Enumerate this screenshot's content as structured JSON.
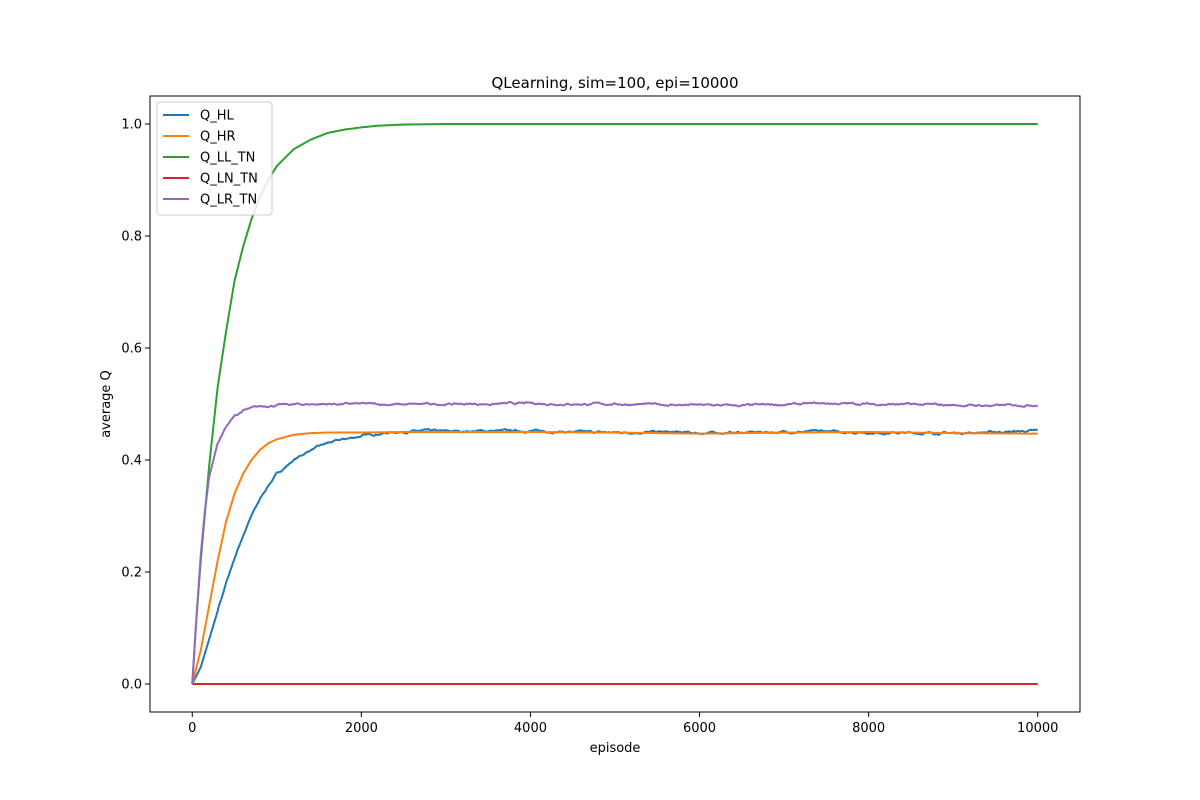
{
  "chart_data": {
    "type": "line",
    "title": "QLearning, sim=100, epi=10000",
    "xlabel": "episode",
    "ylabel": "average Q",
    "xlim": [
      -500,
      10500
    ],
    "ylim": [
      -0.05,
      1.05
    ],
    "xticks": [
      0,
      2000,
      4000,
      6000,
      8000,
      10000
    ],
    "yticks": [
      0.0,
      0.2,
      0.4,
      0.6,
      0.8,
      1.0
    ],
    "xtick_labels": [
      "0",
      "2000",
      "4000",
      "6000",
      "8000",
      "10000"
    ],
    "ytick_labels": [
      "0.0",
      "0.2",
      "0.4",
      "0.6",
      "0.8",
      "1.0"
    ],
    "grid": false,
    "legend_position": "top-left",
    "series": [
      {
        "name": "Q_HL",
        "color": "#1f77b4",
        "x": [
          0,
          100,
          200,
          300,
          400,
          500,
          600,
          700,
          800,
          900,
          1000,
          1200,
          1400,
          1600,
          1800,
          2000,
          2200,
          2400,
          2600,
          2800,
          3000,
          3500,
          4000,
          4500,
          5000,
          5500,
          6000,
          6500,
          7000,
          7500,
          8000,
          8500,
          9000,
          9500,
          10000
        ],
        "y": [
          0.0,
          0.03,
          0.08,
          0.13,
          0.18,
          0.225,
          0.265,
          0.3,
          0.33,
          0.355,
          0.375,
          0.4,
          0.418,
          0.43,
          0.437,
          0.443,
          0.447,
          0.45,
          0.451,
          0.452,
          0.451,
          0.452,
          0.452,
          0.45,
          0.449,
          0.45,
          0.448,
          0.449,
          0.45,
          0.451,
          0.449,
          0.448,
          0.448,
          0.45,
          0.452
        ]
      },
      {
        "name": "Q_HR",
        "color": "#ff7f0e",
        "x": [
          0,
          100,
          200,
          300,
          400,
          500,
          600,
          700,
          800,
          900,
          1000,
          1200,
          1400,
          1600,
          1800,
          2000,
          2500,
          3000,
          4000,
          5000,
          6000,
          7000,
          8000,
          9000,
          10000
        ],
        "y": [
          0.0,
          0.06,
          0.14,
          0.22,
          0.29,
          0.34,
          0.375,
          0.4,
          0.418,
          0.43,
          0.437,
          0.445,
          0.448,
          0.449,
          0.449,
          0.449,
          0.45,
          0.45,
          0.45,
          0.449,
          0.447,
          0.449,
          0.45,
          0.448,
          0.447
        ]
      },
      {
        "name": "Q_LL_TN",
        "color": "#2ca02c",
        "x": [
          0,
          50,
          100,
          200,
          300,
          400,
          500,
          600,
          700,
          800,
          900,
          1000,
          1100,
          1200,
          1400,
          1600,
          1800,
          2000,
          2200,
          2500,
          3000,
          4000,
          5000,
          6000,
          7000,
          8000,
          9000,
          10000
        ],
        "y": [
          0.0,
          0.12,
          0.22,
          0.39,
          0.53,
          0.63,
          0.72,
          0.78,
          0.83,
          0.87,
          0.9,
          0.925,
          0.94,
          0.955,
          0.972,
          0.984,
          0.99,
          0.994,
          0.997,
          0.999,
          1.0,
          1.0,
          1.0,
          1.0,
          1.0,
          1.0,
          1.0,
          1.0
        ]
      },
      {
        "name": "Q_LN_TN",
        "color": "#d62728",
        "x": [
          0,
          10000
        ],
        "y": [
          0.0,
          0.0
        ]
      },
      {
        "name": "Q_LR_TN",
        "color": "#9467bd",
        "x": [
          0,
          50,
          100,
          150,
          200,
          300,
          400,
          500,
          600,
          700,
          800,
          900,
          1000,
          1200,
          1500,
          2000,
          2500,
          3000,
          3500,
          4000,
          4500,
          5000,
          5500,
          6000,
          6500,
          7000,
          7500,
          8000,
          8500,
          9000,
          9500,
          10000
        ],
        "y": [
          0.0,
          0.12,
          0.23,
          0.31,
          0.37,
          0.43,
          0.46,
          0.478,
          0.488,
          0.492,
          0.495,
          0.497,
          0.498,
          0.499,
          0.5,
          0.5,
          0.499,
          0.5,
          0.5,
          0.501,
          0.5,
          0.5,
          0.499,
          0.498,
          0.497,
          0.499,
          0.501,
          0.5,
          0.499,
          0.498,
          0.497,
          0.499
        ]
      }
    ]
  }
}
